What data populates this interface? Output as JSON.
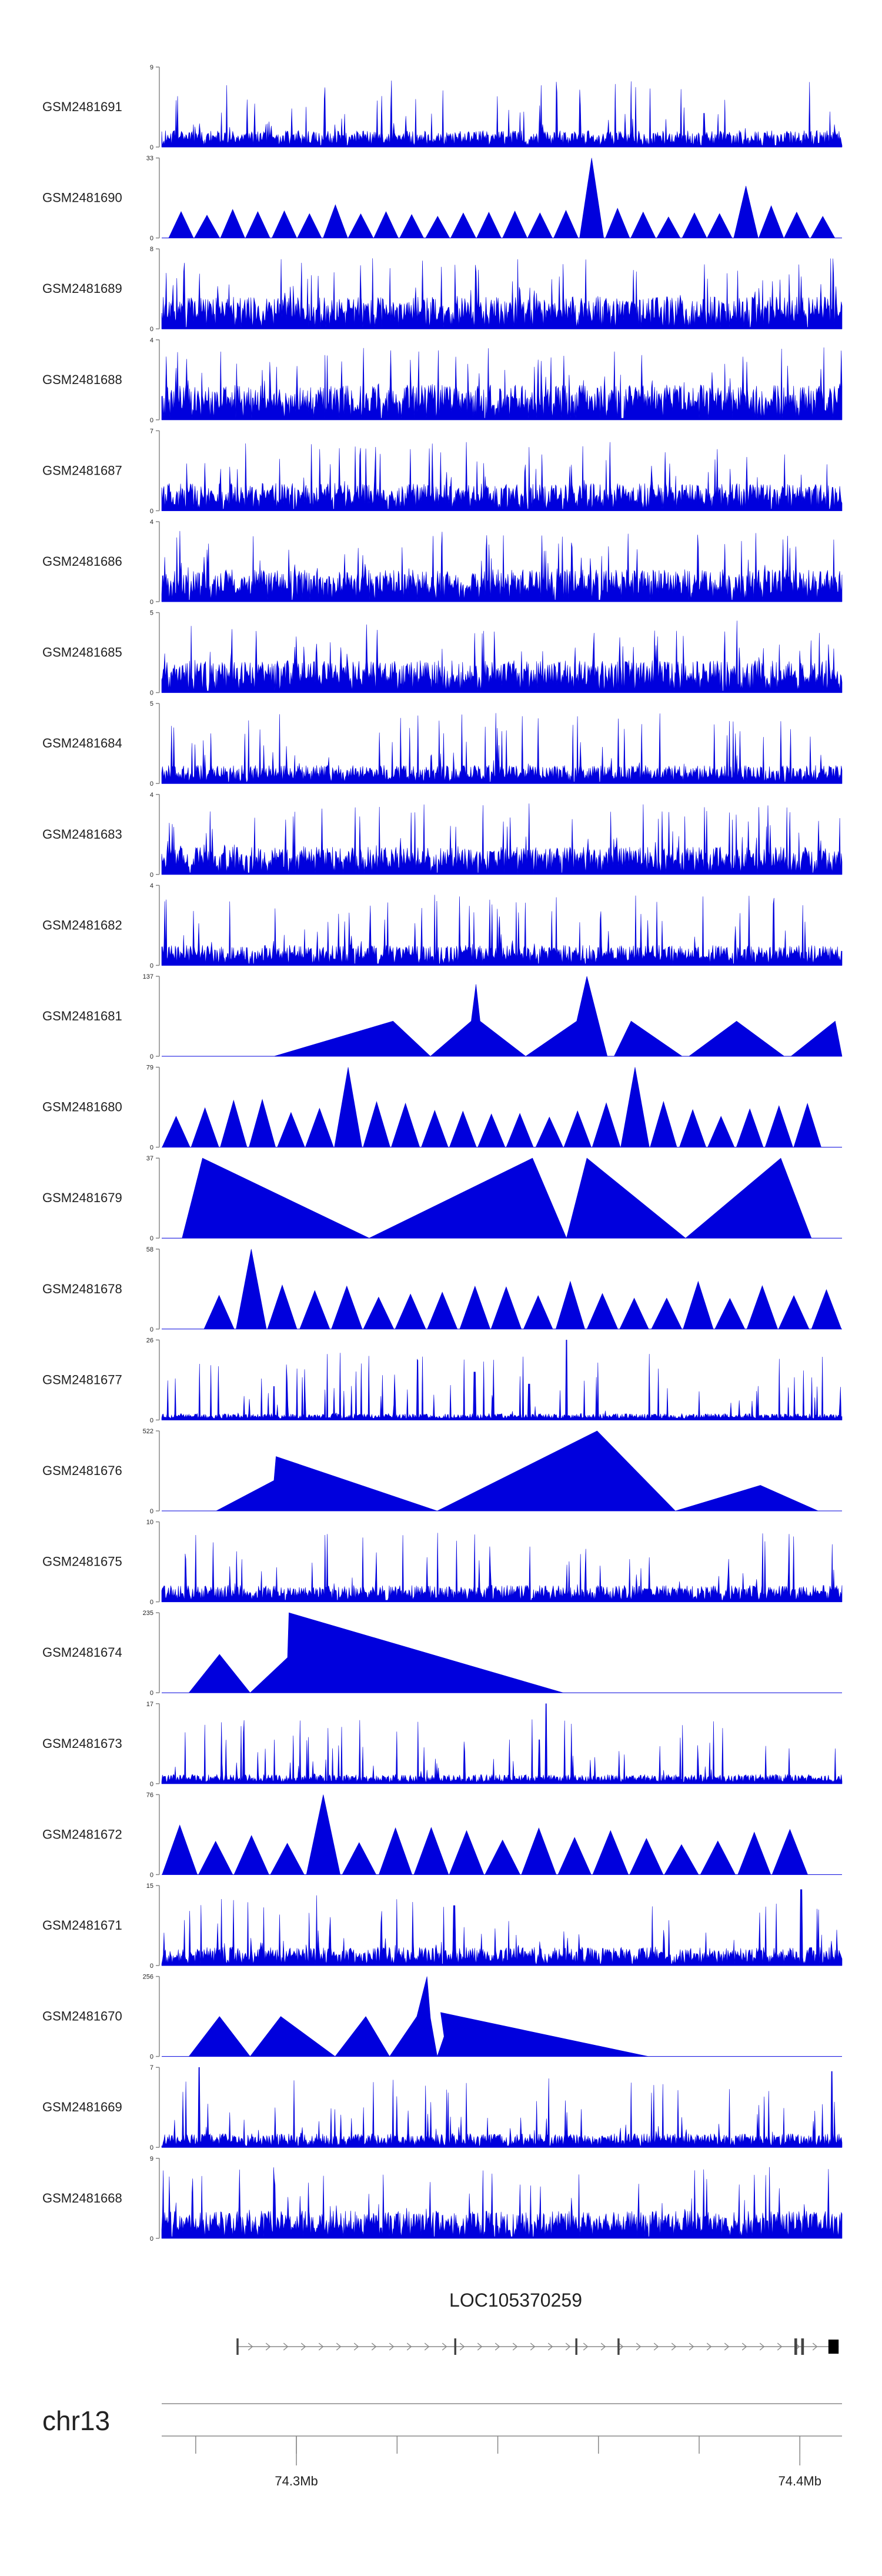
{
  "chart_data": {
    "type": "area",
    "color": "#0000dd",
    "axis_color": "#888888",
    "tracks": [
      {
        "name": "GSM2481691",
        "ymax": "9",
        "ymin": "0",
        "style": "dense",
        "seed": 11,
        "level": 0.18,
        "peak": 0.95
      },
      {
        "name": "GSM2481690",
        "ymax": "33",
        "ymin": "0",
        "style": "tri",
        "seed": 12,
        "n": 26,
        "h": 0.35,
        "peaks": [
          [
            0.64,
            1.0
          ],
          [
            0.86,
            0.65
          ],
          [
            0.18,
            0.28
          ]
        ]
      },
      {
        "name": "GSM2481689",
        "ymax": "8",
        "ymin": "0",
        "style": "dense",
        "seed": 13,
        "level": 0.35,
        "peak": 1.0
      },
      {
        "name": "GSM2481688",
        "ymax": "4",
        "ymin": "0",
        "style": "dense",
        "seed": 14,
        "level": 0.38,
        "peak": 1.0
      },
      {
        "name": "GSM2481687",
        "ymax": "7",
        "ymin": "0",
        "style": "dense",
        "seed": 15,
        "level": 0.3,
        "peak": 1.0
      },
      {
        "name": "GSM2481686",
        "ymax": "4",
        "ymin": "0",
        "style": "dense",
        "seed": 16,
        "level": 0.35,
        "peak": 1.0
      },
      {
        "name": "GSM2481685",
        "ymax": "5",
        "ymin": "0",
        "style": "dense",
        "seed": 17,
        "level": 0.35,
        "peak": 1.0
      },
      {
        "name": "GSM2481684",
        "ymax": "5",
        "ymin": "0",
        "style": "dense",
        "seed": 18,
        "level": 0.2,
        "peak": 1.0
      },
      {
        "name": "GSM2481683",
        "ymax": "4",
        "ymin": "0",
        "style": "dense",
        "seed": 19,
        "level": 0.3,
        "peak": 1.0
      },
      {
        "name": "GSM2481682",
        "ymax": "4",
        "ymin": "0",
        "style": "dense",
        "seed": 20,
        "level": 0.22,
        "peak": 1.0
      },
      {
        "name": "GSM2481681",
        "ymax": "137",
        "ymin": "0",
        "style": "poly",
        "pts": [
          [
            0.165,
            0
          ],
          [
            0.34,
            0.44
          ],
          [
            0.395,
            0
          ],
          [
            0.455,
            0.44
          ],
          [
            0.462,
            0.9
          ],
          [
            0.468,
            0.44
          ],
          [
            0.535,
            0
          ],
          [
            0.61,
            0.44
          ],
          [
            0.625,
            1.0
          ],
          [
            0.655,
            0
          ],
          [
            0.665,
            0
          ],
          [
            0.69,
            0.44
          ],
          [
            0.765,
            0
          ],
          [
            0.775,
            0
          ],
          [
            0.845,
            0.44
          ],
          [
            0.915,
            0
          ],
          [
            0.925,
            0
          ],
          [
            0.99,
            0.44
          ],
          [
            1.0,
            0
          ]
        ]
      },
      {
        "name": "GSM2481680",
        "ymax": "79",
        "ymin": "0",
        "style": "tri",
        "seed": 22,
        "n": 23,
        "h": 0.5,
        "from": 0.0,
        "to": 0.97,
        "peaks": [
          [
            0.29,
            1.0
          ],
          [
            0.685,
            1.0
          ],
          [
            0.7,
            0.6
          ],
          [
            0.35,
            0.55
          ]
        ]
      },
      {
        "name": "GSM2481679",
        "ymax": "37",
        "ymin": "0",
        "style": "poly",
        "pts": [
          [
            0.03,
            0
          ],
          [
            0.06,
            1.0
          ],
          [
            0.305,
            0
          ],
          [
            0.545,
            1.0
          ],
          [
            0.595,
            0
          ],
          [
            0.625,
            1.0
          ],
          [
            0.77,
            0
          ],
          [
            0.91,
            1.0
          ],
          [
            0.955,
            0
          ]
        ]
      },
      {
        "name": "GSM2481678",
        "ymax": "58",
        "ymin": "0",
        "style": "tri",
        "seed": 24,
        "n": 20,
        "h": 0.5,
        "from": 0.06,
        "to": 1.0,
        "peaks": [
          [
            0.13,
            1.0
          ],
          [
            0.155,
            0.55
          ]
        ]
      },
      {
        "name": "GSM2481677",
        "ymax": "26",
        "ymin": "0",
        "style": "dense",
        "seed": 25,
        "level": 0.07,
        "peak": 1.0,
        "spikes": [
          [
            0.595,
            1.0
          ],
          [
            0.46,
            0.6
          ],
          [
            0.165,
            0.42
          ],
          [
            0.54,
            0.45
          ]
        ]
      },
      {
        "name": "GSM2481676",
        "ymax": "522",
        "ymin": "0",
        "style": "poly",
        "pts": [
          [
            0.08,
            0
          ],
          [
            0.165,
            0.38
          ],
          [
            0.168,
            0.68
          ],
          [
            0.405,
            0
          ],
          [
            0.64,
            1.0
          ],
          [
            0.755,
            0
          ],
          [
            0.88,
            0.32
          ],
          [
            0.965,
            0
          ]
        ]
      },
      {
        "name": "GSM2481675",
        "ymax": "10",
        "ymin": "0",
        "style": "dense",
        "seed": 27,
        "level": 0.18,
        "peak": 1.0
      },
      {
        "name": "GSM2481674",
        "ymax": "235",
        "ymin": "0",
        "style": "poly",
        "pts": [
          [
            0.04,
            0
          ],
          [
            0.085,
            0.48
          ],
          [
            0.13,
            0
          ],
          [
            0.185,
            0.44
          ],
          [
            0.187,
            1.0
          ],
          [
            0.59,
            0
          ]
        ]
      },
      {
        "name": "GSM2481673",
        "ymax": "17",
        "ymin": "0",
        "style": "dense",
        "seed": 29,
        "level": 0.1,
        "peak": 1.0,
        "spikes": [
          [
            0.565,
            1.0
          ],
          [
            0.555,
            0.55
          ]
        ]
      },
      {
        "name": "GSM2481672",
        "ymax": "76",
        "ymin": "0",
        "style": "tri",
        "seed": 30,
        "n": 18,
        "h": 0.5,
        "from": 0.0,
        "to": 0.95,
        "peaks": [
          [
            0.24,
            1.0
          ],
          [
            0.02,
            0.62
          ]
        ]
      },
      {
        "name": "GSM2481671",
        "ymax": "15",
        "ymin": "0",
        "style": "dense",
        "seed": 31,
        "level": 0.2,
        "peak": 1.0,
        "spikes": [
          [
            0.94,
            0.95
          ],
          [
            0.43,
            0.75
          ]
        ]
      },
      {
        "name": "GSM2481670",
        "ymax": "256",
        "ymin": "0",
        "style": "poly",
        "pts": [
          [
            0.04,
            0
          ],
          [
            0.085,
            0.5
          ],
          [
            0.13,
            0
          ],
          [
            0.175,
            0.5
          ],
          [
            0.255,
            0
          ],
          [
            0.3,
            0.5
          ],
          [
            0.335,
            0
          ],
          [
            0.375,
            0.5
          ],
          [
            0.39,
            1.0
          ],
          [
            0.395,
            0.48
          ],
          [
            0.405,
            0
          ],
          [
            0.415,
            0.25
          ],
          [
            0.41,
            0.55
          ],
          [
            0.715,
            0
          ]
        ]
      },
      {
        "name": "GSM2481669",
        "ymax": "7",
        "ymin": "0",
        "style": "dense",
        "seed": 33,
        "level": 0.15,
        "peak": 1.0,
        "spikes": [
          [
            0.055,
            1.0
          ],
          [
            0.985,
            0.95
          ]
        ]
      },
      {
        "name": "GSM2481668",
        "ymax": "9",
        "ymin": "0",
        "style": "dense",
        "seed": 34,
        "level": 0.3,
        "peak": 1.0
      }
    ],
    "gene": {
      "name": "LOC105370259",
      "start": 0.11,
      "end": 0.995,
      "exons": [
        [
          0.11,
          0.113
        ],
        [
          0.43,
          0.433
        ],
        [
          0.608,
          0.611
        ],
        [
          0.67,
          0.673
        ],
        [
          0.93,
          0.934
        ],
        [
          0.94,
          0.944
        ],
        [
          0.98,
          0.995
        ]
      ]
    },
    "axis": {
      "chromosome": "chr13",
      "ticks": [
        0.05,
        0.198,
        0.346,
        0.494,
        0.642,
        0.79,
        0.938
      ],
      "labelled": [
        {
          "pos": 0.198,
          "label": "74.3Mb"
        },
        {
          "pos": 0.938,
          "label": "74.4Mb"
        }
      ]
    }
  }
}
